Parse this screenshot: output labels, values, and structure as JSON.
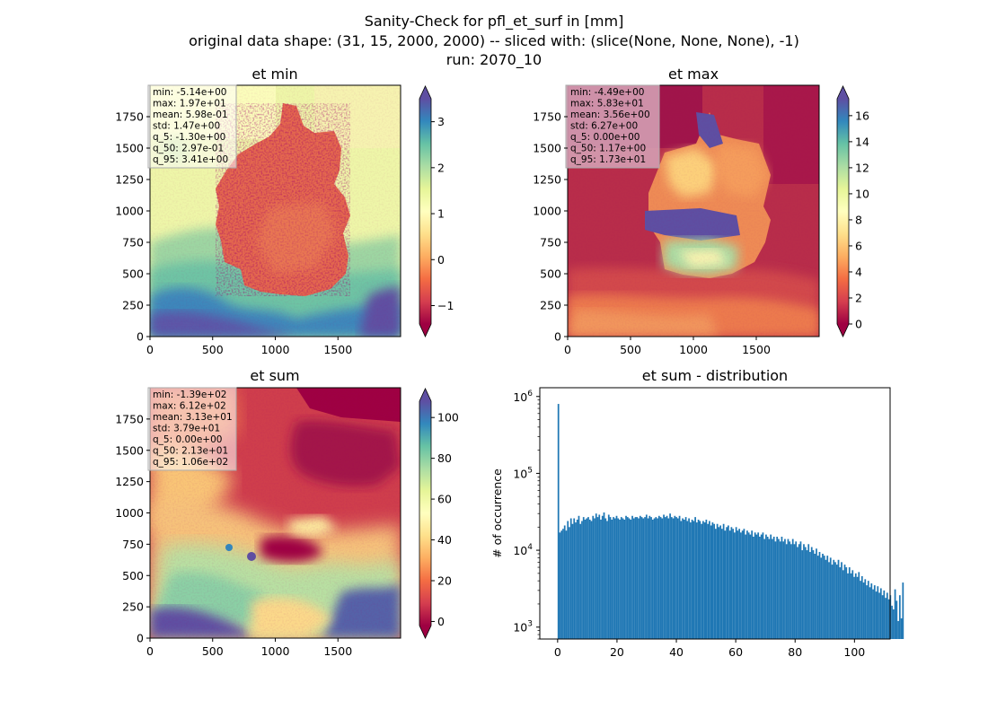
{
  "figure": {
    "title_lines": [
      "Sanity-Check for pfl_et_surf in [mm]",
      "original data shape: (31, 15, 2000, 2000) -- sliced with: (slice(None, None, None), -1)",
      "run: 2070_10"
    ]
  },
  "chart_data": [
    {
      "type": "heatmap",
      "title": "et min",
      "colormap": "Spectral",
      "xticks": [
        "0",
        "500",
        "1000",
        "1500"
      ],
      "yticks": [
        "0",
        "250",
        "500",
        "750",
        "1000",
        "1250",
        "1500",
        "1750"
      ],
      "xlim": [
        0,
        2000
      ],
      "ylim": [
        0,
        2000
      ],
      "colorbar": {
        "range": [
          -1.4,
          3.5
        ],
        "ticks": [
          "−1",
          "0",
          "1",
          "2",
          "3"
        ],
        "tick_values": [
          -1,
          0,
          1,
          2,
          3
        ],
        "extend": "both"
      },
      "stats": [
        "min: -5.14e+00",
        "max: 1.97e+01",
        "mean: 5.98e-01",
        "std: 1.47e+00",
        "q_5: -1.30e+00",
        "q_50: 2.97e-01",
        "q_95: 3.41e+00"
      ],
      "stats_box_color": "#ffffff"
    },
    {
      "type": "heatmap",
      "title": "et max",
      "colormap": "Spectral",
      "xticks": [
        "0",
        "500",
        "1000",
        "1500"
      ],
      "yticks": [
        "0",
        "250",
        "500",
        "750",
        "1000",
        "1250",
        "1500",
        "1750"
      ],
      "xlim": [
        0,
        2000
      ],
      "ylim": [
        0,
        2000
      ],
      "colorbar": {
        "range": [
          0,
          17.3
        ],
        "ticks": [
          "0",
          "2",
          "4",
          "6",
          "8",
          "10",
          "12",
          "14",
          "16"
        ],
        "tick_values": [
          0,
          2,
          4,
          6,
          8,
          10,
          12,
          14,
          16
        ],
        "extend": "both"
      },
      "stats": [
        "min: -4.49e+00",
        "max: 5.83e+01",
        "mean: 3.56e+00",
        "std: 6.27e+00",
        "q_5: 0.00e+00",
        "q_50: 1.17e+00",
        "q_95: 1.73e+01"
      ],
      "stats_box_color": "#d6a6b8"
    },
    {
      "type": "heatmap",
      "title": "et sum",
      "colormap": "Spectral",
      "xticks": [
        "0",
        "500",
        "1000",
        "1500"
      ],
      "yticks": [
        "0",
        "250",
        "500",
        "750",
        "1000",
        "1250",
        "1500",
        "1750"
      ],
      "xlim": [
        0,
        2000
      ],
      "ylim": [
        0,
        2000
      ],
      "colorbar": {
        "range": [
          -2,
          108
        ],
        "ticks": [
          "0",
          "20",
          "40",
          "60",
          "80",
          "100"
        ],
        "tick_values": [
          0,
          20,
          40,
          60,
          80,
          100
        ],
        "extend": "both"
      },
      "stats": [
        "min: -1.39e+02",
        "max: 6.12e+02",
        "mean: 3.13e+01",
        "std: 3.79e+01",
        "q_5: 0.00e+00",
        "q_50: 2.13e+01",
        "q_95: 1.06e+02"
      ],
      "stats_box_color": "#ffffff"
    },
    {
      "type": "bar",
      "title": "et sum - distribution",
      "ylabel": "# of occurrence",
      "yscale": "log",
      "ylim": [
        700,
        1300000
      ],
      "xlim": [
        -6,
        112
      ],
      "bar_color": "#1f77b4",
      "xticks": [
        "0",
        "20",
        "40",
        "60",
        "80",
        "100"
      ],
      "xtick_values": [
        0,
        20,
        40,
        60,
        80,
        100
      ],
      "yticks": [
        {
          "base": "10",
          "exp": "3",
          "value": 1000
        },
        {
          "base": "10",
          "exp": "4",
          "value": 10000
        },
        {
          "base": "10",
          "exp": "5",
          "value": 100000
        },
        {
          "base": "10",
          "exp": "6",
          "value": 1000000
        }
      ],
      "bins": {
        "start": 0,
        "width": 0.53
      },
      "values": [
        800000,
        17000,
        18000,
        19000,
        21000,
        18000,
        24000,
        20000,
        26000,
        22000,
        26000,
        23000,
        25000,
        28000,
        22000,
        24000,
        27000,
        25000,
        26000,
        27000,
        25000,
        24000,
        28000,
        26000,
        30000,
        27000,
        29000,
        25000,
        28000,
        31000,
        26000,
        24000,
        29000,
        27000,
        25000,
        27000,
        26000,
        28000,
        26000,
        25000,
        27000,
        26000,
        25000,
        28000,
        27000,
        26000,
        25000,
        28000,
        26000,
        27000,
        27000,
        26000,
        28000,
        27000,
        26000,
        27000,
        29000,
        26000,
        28000,
        27000,
        25000,
        26000,
        27000,
        26000,
        28000,
        27000,
        26000,
        29000,
        27000,
        28000,
        26000,
        30000,
        27000,
        26000,
        28000,
        27000,
        26000,
        28000,
        24000,
        26000,
        25000,
        27000,
        24000,
        26000,
        23000,
        25000,
        24000,
        27000,
        23000,
        25000,
        24000,
        22000,
        24000,
        23000,
        25000,
        22000,
        24000,
        21000,
        23000,
        22000,
        19000,
        22000,
        20000,
        21000,
        19000,
        22000,
        18000,
        20000,
        21000,
        18000,
        20000,
        19000,
        17000,
        20000,
        18000,
        19000,
        17000,
        18000,
        19000,
        16000,
        18000,
        17000,
        16000,
        18000,
        15000,
        17000,
        16000,
        17000,
        15000,
        16000,
        17000,
        14000,
        16000,
        15000,
        14000,
        16000,
        14000,
        15000,
        13000,
        15000,
        14000,
        13000,
        15000,
        13000,
        14000,
        12000,
        14000,
        13000,
        12000,
        14000,
        12000,
        13000,
        11000,
        12000,
        13000,
        10000,
        12000,
        11000,
        10000,
        12000,
        9500,
        11000,
        10000,
        9000,
        10500,
        8500,
        9500,
        8000,
        9000,
        8500,
        7500,
        8500,
        7000,
        8000,
        6500,
        7500,
        7000,
        6500,
        7500,
        6000,
        7000,
        5500,
        6500,
        6000,
        5000,
        6000,
        5000,
        5500,
        4500,
        5000,
        4500,
        5200,
        4000,
        4600,
        3800,
        4200,
        3500,
        4000,
        3300,
        3700,
        3100,
        3500,
        2900,
        3400,
        2800,
        3200,
        2600,
        3000,
        2400,
        2800,
        2300,
        2600,
        1900,
        1700,
        3100,
        2200,
        1200,
        2600,
        1300,
        3800
      ]
    }
  ]
}
